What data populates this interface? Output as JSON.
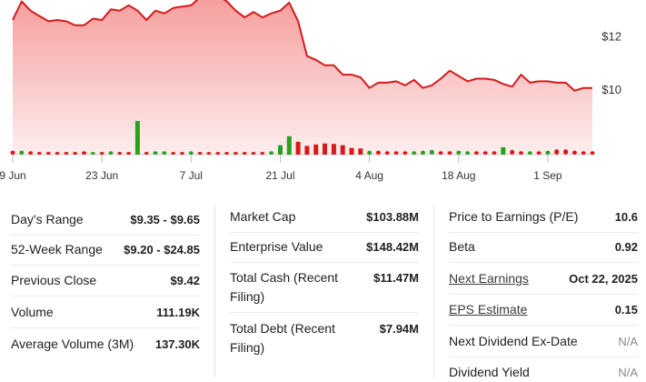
{
  "chart_data": {
    "type": "line",
    "y_ticks": [
      {
        "value": 12,
        "label": "$12"
      },
      {
        "value": 10,
        "label": "$10"
      }
    ],
    "ylim": [
      7.55,
      13.35
    ],
    "x_ticks": [
      {
        "index": 0,
        "label": "9 Jun"
      },
      {
        "index": 10,
        "label": "23 Jun"
      },
      {
        "index": 20,
        "label": "7 Jul"
      },
      {
        "index": 30,
        "label": "21 Jul"
      },
      {
        "index": 40,
        "label": "4 Aug"
      },
      {
        "index": 50,
        "label": "18 Aug"
      },
      {
        "index": 60,
        "label": "1 Sep"
      }
    ],
    "price": [
      12.6,
      13.3,
      12.95,
      12.75,
      12.55,
      12.6,
      12.55,
      12.4,
      12.4,
      12.65,
      12.6,
      13.0,
      12.95,
      13.15,
      12.95,
      12.6,
      12.95,
      12.85,
      13.05,
      13.1,
      13.15,
      13.45,
      13.4,
      13.5,
      13.3,
      12.95,
      12.7,
      12.9,
      12.7,
      12.85,
      12.95,
      13.25,
      12.55,
      11.25,
      11.1,
      10.9,
      10.9,
      10.55,
      10.55,
      10.45,
      10.05,
      10.25,
      10.25,
      10.3,
      10.15,
      10.35,
      10.05,
      10.15,
      10.4,
      10.7,
      10.5,
      10.3,
      10.4,
      10.4,
      10.35,
      10.2,
      10.1,
      10.55,
      10.25,
      10.3,
      10.3,
      10.25,
      10.25,
      9.95,
      10.05,
      10.05
    ],
    "volume": [
      {
        "value": 0.12,
        "direction": "down"
      },
      {
        "value": 0.12,
        "direction": "up"
      },
      {
        "value": 0.1,
        "direction": "down"
      },
      {
        "value": 0.08,
        "direction": "down"
      },
      {
        "value": 0.08,
        "direction": "down"
      },
      {
        "value": 0.08,
        "direction": "down"
      },
      {
        "value": 0.08,
        "direction": "down"
      },
      {
        "value": 0.08,
        "direction": "down"
      },
      {
        "value": 0.1,
        "direction": "down"
      },
      {
        "value": 0.08,
        "direction": "up"
      },
      {
        "value": 0.08,
        "direction": "down"
      },
      {
        "value": 0.1,
        "direction": "up"
      },
      {
        "value": 0.08,
        "direction": "down"
      },
      {
        "value": 0.08,
        "direction": "down"
      },
      {
        "value": 1.0,
        "direction": "up"
      },
      {
        "value": 0.08,
        "direction": "down"
      },
      {
        "value": 0.1,
        "direction": "up"
      },
      {
        "value": 0.1,
        "direction": "up"
      },
      {
        "value": 0.08,
        "direction": "down"
      },
      {
        "value": 0.08,
        "direction": "down"
      },
      {
        "value": 0.1,
        "direction": "up"
      },
      {
        "value": 0.08,
        "direction": "down"
      },
      {
        "value": 0.08,
        "direction": "down"
      },
      {
        "value": 0.08,
        "direction": "down"
      },
      {
        "value": 0.08,
        "direction": "down"
      },
      {
        "value": 0.08,
        "direction": "down"
      },
      {
        "value": 0.08,
        "direction": "down"
      },
      {
        "value": 0.08,
        "direction": "down"
      },
      {
        "value": 0.08,
        "direction": "down"
      },
      {
        "value": 0.1,
        "direction": "up"
      },
      {
        "value": 0.28,
        "direction": "up"
      },
      {
        "value": 0.55,
        "direction": "up"
      },
      {
        "value": 0.38,
        "direction": "down"
      },
      {
        "value": 0.26,
        "direction": "down"
      },
      {
        "value": 0.3,
        "direction": "down"
      },
      {
        "value": 0.33,
        "direction": "down"
      },
      {
        "value": 0.32,
        "direction": "down"
      },
      {
        "value": 0.28,
        "direction": "down"
      },
      {
        "value": 0.2,
        "direction": "down"
      },
      {
        "value": 0.18,
        "direction": "down"
      },
      {
        "value": 0.12,
        "direction": "up"
      },
      {
        "value": 0.12,
        "direction": "down"
      },
      {
        "value": 0.1,
        "direction": "down"
      },
      {
        "value": 0.1,
        "direction": "down"
      },
      {
        "value": 0.1,
        "direction": "down"
      },
      {
        "value": 0.1,
        "direction": "up"
      },
      {
        "value": 0.12,
        "direction": "up"
      },
      {
        "value": 0.14,
        "direction": "up"
      },
      {
        "value": 0.1,
        "direction": "down"
      },
      {
        "value": 0.1,
        "direction": "down"
      },
      {
        "value": 0.12,
        "direction": "up"
      },
      {
        "value": 0.1,
        "direction": "up"
      },
      {
        "value": 0.1,
        "direction": "down"
      },
      {
        "value": 0.1,
        "direction": "down"
      },
      {
        "value": 0.1,
        "direction": "down"
      },
      {
        "value": 0.22,
        "direction": "up"
      },
      {
        "value": 0.14,
        "direction": "down"
      },
      {
        "value": 0.1,
        "direction": "down"
      },
      {
        "value": 0.1,
        "direction": "up"
      },
      {
        "value": 0.1,
        "direction": "down"
      },
      {
        "value": 0.12,
        "direction": "up"
      },
      {
        "value": 0.16,
        "direction": "down"
      },
      {
        "value": 0.16,
        "direction": "down"
      },
      {
        "value": 0.12,
        "direction": "down"
      },
      {
        "value": 0.1,
        "direction": "down"
      },
      {
        "value": 0.1,
        "direction": "down"
      }
    ],
    "colors": {
      "line": "#d7191b",
      "fill_top": "#f59d9c",
      "fill_bottom": "#fdeeee",
      "volume_up": "#27a120",
      "volume_down": "#d7191b"
    }
  },
  "stats": {
    "col1": [
      {
        "label": "Day's Range",
        "value": "$9.35 - $9.65"
      },
      {
        "label": "52-Week Range",
        "value": "$9.20 - $24.85"
      },
      {
        "label": "Previous Close",
        "value": "$9.42"
      },
      {
        "label": "Volume",
        "value": "111.19K"
      },
      {
        "label": "Average Volume (3M)",
        "value": "137.30K"
      }
    ],
    "col2": [
      {
        "label": "Market Cap",
        "value": "$103.88M"
      },
      {
        "label": "Enterprise Value",
        "value": "$148.42M"
      },
      {
        "label": "Total Cash (Recent Filing)",
        "value": "$11.47M"
      },
      {
        "label": "Total Debt (Recent Filing)",
        "value": "$7.94M"
      }
    ],
    "col3": [
      {
        "label": "Price to Earnings (P/E)",
        "value": "10.6"
      },
      {
        "label": "Beta",
        "value": "0.92"
      },
      {
        "label": "Next Earnings",
        "value": "Oct 22, 2025"
      },
      {
        "label": "EPS Estimate",
        "value": "0.15"
      },
      {
        "label": "Next Dividend Ex-Date",
        "value": "N/A"
      },
      {
        "label": "Dividend Yield",
        "value": "N/A"
      }
    ]
  }
}
